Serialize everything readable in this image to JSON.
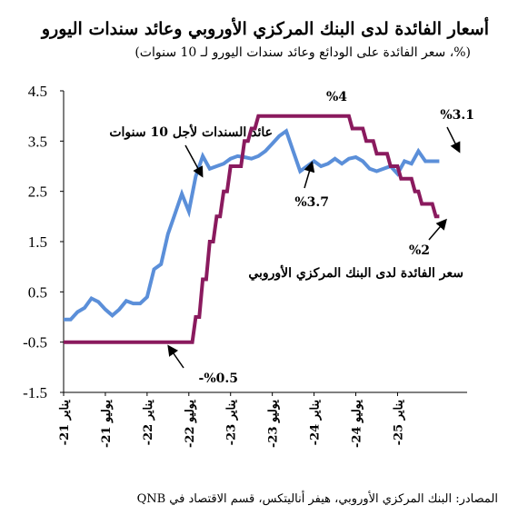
{
  "chart_data": {
    "type": "line",
    "title": "أسعار الفائدة لدى البنك المركزي الأوروبي وعائد سندات اليورو",
    "subtitle": "(%، سعر الفائدة على الودائع وعائد سندات اليورو لـ 10 سنوات)",
    "source": "المصادر: البنك المركزي الأوروبي، هيفر أناليتكس، قسم الاقتصاد في QNB",
    "ylim": [
      -1.5,
      4.5
    ],
    "yticks": [
      "4.5",
      "3.5",
      "2.5",
      "1.5",
      "0.5",
      "-0.5",
      "-1.5"
    ],
    "ytick_values": [
      4.5,
      3.5,
      2.5,
      1.5,
      0.5,
      -0.5,
      -1.5
    ],
    "xlim": [
      0,
      58
    ],
    "xticks": [
      {
        "label": "يناير 21-",
        "x": 0
      },
      {
        "label": "يوليو 21-",
        "x": 6
      },
      {
        "label": "يناير 22-",
        "x": 12
      },
      {
        "label": "يوليو 22-",
        "x": 18
      },
      {
        "label": "يناير 23-",
        "x": 24
      },
      {
        "label": "يوليو 23-",
        "x": 30
      },
      {
        "label": "يناير 24-",
        "x": 36
      },
      {
        "label": "يوليو 24-",
        "x": 42
      },
      {
        "label": "يناير 25-",
        "x": 48
      }
    ],
    "series": [
      {
        "name": "عائد السندات لأجل 10 سنوات",
        "color": "#5b8fd9",
        "x": [
          0,
          1,
          2,
          3,
          4,
          5,
          6,
          7,
          8,
          9,
          10,
          11,
          12,
          13,
          14,
          15,
          16,
          17,
          18,
          19,
          20,
          21,
          22,
          23,
          24,
          25,
          26,
          27,
          28,
          29,
          30,
          31,
          32,
          33,
          34,
          35,
          36,
          37,
          38,
          39,
          40,
          41,
          42,
          43,
          44,
          45,
          46,
          47,
          48,
          49,
          50,
          51,
          52,
          53,
          54
        ],
        "values": [
          -0.05,
          -0.05,
          0.1,
          0.18,
          0.37,
          0.3,
          0.15,
          0.03,
          0.15,
          0.32,
          0.27,
          0.27,
          0.4,
          0.95,
          1.05,
          1.65,
          2.05,
          2.45,
          2.1,
          2.8,
          3.2,
          2.95,
          3.0,
          3.05,
          3.15,
          3.2,
          3.18,
          3.15,
          3.2,
          3.3,
          3.45,
          3.6,
          3.7,
          3.3,
          2.9,
          3.0,
          3.1,
          3.0,
          3.05,
          3.15,
          3.05,
          3.15,
          3.18,
          3.1,
          2.95,
          2.9,
          2.95,
          3.0,
          2.85,
          3.1,
          3.05,
          3.3,
          3.1,
          3.1,
          3.1
        ]
      },
      {
        "name": "سعر الفائدة لدى البنك المركزي الأوروبي",
        "color": "#8a1a5e",
        "x": [
          0,
          17.5,
          18,
          18.5,
          19,
          19.5,
          20,
          20.5,
          21,
          21.5,
          22,
          22.5,
          23,
          23.5,
          24,
          24.5,
          25,
          25.5,
          26,
          26.5,
          27,
          27.5,
          28,
          28.5,
          29,
          29.5,
          30,
          30.5,
          31,
          41,
          41.5,
          43,
          43.5,
          44.5,
          45,
          46.5,
          47,
          48,
          48.5,
          50,
          50.5,
          51,
          51.5,
          52,
          52.5,
          53,
          53.5,
          54
        ],
        "values": [
          -0.5,
          -0.5,
          -0.5,
          -0.5,
          0.0,
          0.0,
          0.75,
          0.75,
          1.5,
          1.5,
          2.0,
          2.0,
          2.5,
          2.5,
          3.0,
          3.0,
          3.0,
          3.0,
          3.5,
          3.5,
          3.75,
          3.75,
          4.0,
          4.0,
          4.0,
          4.0,
          4.0,
          4.0,
          4.0,
          4.0,
          3.75,
          3.75,
          3.5,
          3.5,
          3.25,
          3.25,
          3.0,
          3.0,
          2.75,
          2.75,
          2.5,
          2.5,
          2.25,
          2.25,
          2.25,
          2.25,
          2.0,
          2.0
        ]
      }
    ],
    "annotations": [
      {
        "text": "عائد السندات لأجل 10 سنوات"
      },
      {
        "text": "%3.7"
      },
      {
        "text": "%4"
      },
      {
        "text": "%3.1"
      },
      {
        "text": "%2"
      },
      {
        "text": "سعر الفائدة لدى البنك المركزي الأوروبي"
      },
      {
        "text": "%0.5-"
      }
    ],
    "grid": false,
    "legend": "none"
  }
}
